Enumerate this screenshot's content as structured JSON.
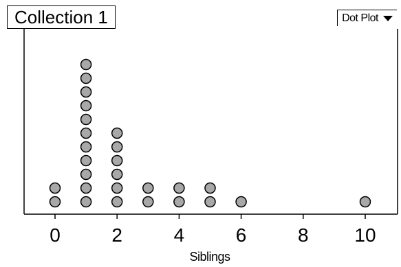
{
  "collection": {
    "title": "Collection 1"
  },
  "plot_type": {
    "label": "Dot Plot",
    "icon": "dropdown-arrow-icon"
  },
  "colors": {
    "dot_fill": "#a8a8a8",
    "dot_stroke": "#000000",
    "axis": "#000000"
  },
  "chart_data": {
    "type": "scatter",
    "subtype": "dot-plot",
    "xlabel": "Siblings",
    "xlim": [
      -1,
      11
    ],
    "xticks": [
      0,
      2,
      4,
      6,
      8,
      10
    ],
    "grid": false,
    "points": [
      {
        "x": 0,
        "count": 2
      },
      {
        "x": 1,
        "count": 11
      },
      {
        "x": 2,
        "count": 6
      },
      {
        "x": 3,
        "count": 2
      },
      {
        "x": 4,
        "count": 2
      },
      {
        "x": 5,
        "count": 2
      },
      {
        "x": 6,
        "count": 1
      },
      {
        "x": 10,
        "count": 1
      }
    ]
  }
}
